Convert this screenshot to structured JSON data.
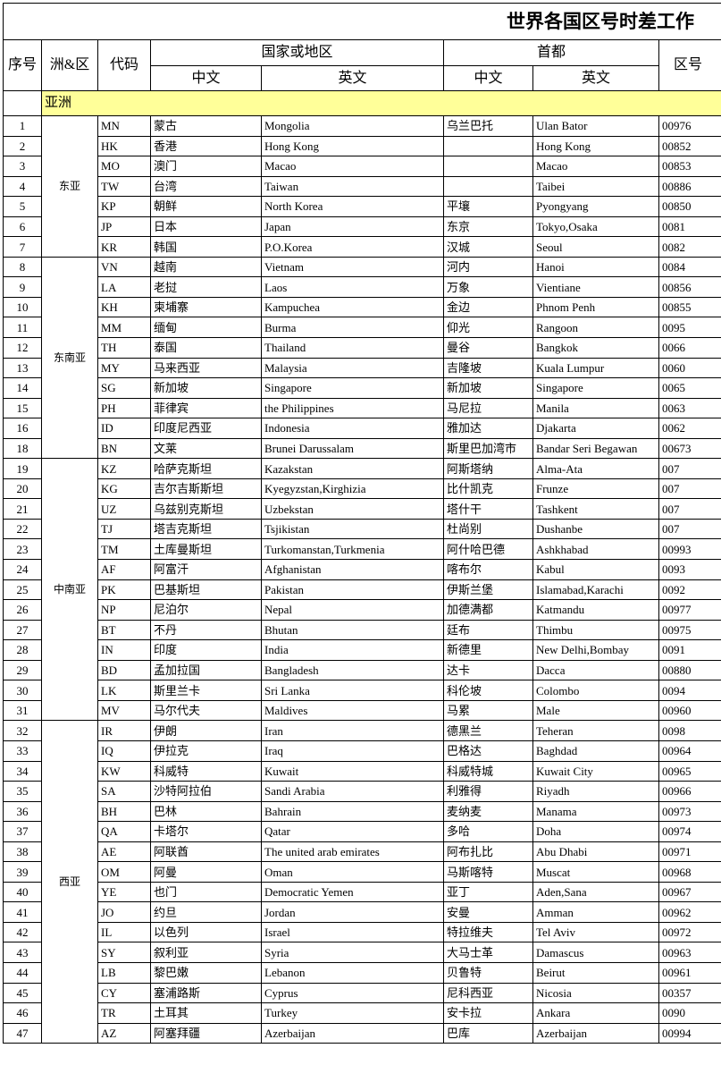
{
  "title": "世界各国区号时差工作",
  "header": {
    "no": "序号",
    "region": "洲&区",
    "code": "代码",
    "country": "国家或地区",
    "capital": "首都",
    "zone": "区号",
    "cn": "中文",
    "en": "英文"
  },
  "table": {
    "continent": "亚洲",
    "groups": [
      {
        "name": "东亚",
        "rows": [
          [
            "1",
            "MN",
            "蒙古",
            "Mongolia",
            "乌兰巴托",
            "Ulan Bator",
            "00976"
          ],
          [
            "2",
            "HK",
            "香港",
            "Hong Kong",
            null,
            "Hong Kong",
            "00852"
          ],
          [
            "3",
            "MO",
            "澳门",
            "Macao",
            null,
            "Macao",
            "00853"
          ],
          [
            "4",
            "TW",
            "台湾",
            "Taiwan",
            null,
            "Taibei",
            "00886"
          ],
          [
            "5",
            "KP",
            "朝鲜",
            "North Korea",
            "平壤",
            "Pyongyang",
            "00850"
          ],
          [
            "6",
            "JP",
            "日本",
            "Japan",
            "东京",
            "Tokyo,Osaka",
            "0081"
          ],
          [
            "7",
            "KR",
            "韩国",
            "P.O.Korea",
            "汉城",
            "Seoul",
            "0082"
          ]
        ]
      },
      {
        "name": "东南亚",
        "rows": [
          [
            "8",
            "VN",
            "越南",
            "Vietnam",
            "河内",
            "Hanoi",
            "0084"
          ],
          [
            "9",
            "LA",
            "老挝",
            "Laos",
            "万象",
            "Vientiane",
            "00856"
          ],
          [
            "10",
            "KH",
            "柬埔寨",
            "Kampuchea",
            "金边",
            "Phnom Penh",
            "00855"
          ],
          [
            "11",
            "MM",
            "缅甸",
            "Burma",
            "仰光",
            "Rangoon",
            "0095"
          ],
          [
            "12",
            "TH",
            "泰国",
            "Thailand",
            "曼谷",
            "Bangkok",
            "0066"
          ],
          [
            "13",
            "MY",
            "马来西亚",
            "Malaysia",
            "吉隆坡",
            "Kuala Lumpur",
            "0060"
          ],
          [
            "14",
            "SG",
            "新加坡",
            "Singapore",
            "新加坡",
            "Singapore",
            "0065"
          ],
          [
            "15",
            "PH",
            "菲律宾",
            "the Philippines",
            "马尼拉",
            "Manila",
            "0063"
          ],
          [
            "16",
            "ID",
            "印度尼西亚",
            "Indonesia",
            "雅加达",
            "Djakarta",
            "0062"
          ],
          [
            "18",
            "BN",
            "文莱",
            "Brunei Darussalam",
            "斯里巴加湾市",
            "Bandar Seri Begawan",
            "00673"
          ]
        ]
      },
      {
        "name": "中南亚",
        "rows": [
          [
            "19",
            "KZ",
            "哈萨克斯坦",
            "Kazakstan",
            "阿斯塔纳",
            "Alma-Ata",
            "007"
          ],
          [
            "20",
            "KG",
            "吉尔吉斯斯坦",
            "Kyegyzstan,Kirghizia",
            "比什凯克",
            "Frunze",
            "007"
          ],
          [
            "21",
            "UZ",
            "乌兹别克斯坦",
            "Uzbekstan",
            "塔什干",
            "Tashkent",
            "007"
          ],
          [
            "22",
            "TJ",
            "塔吉克斯坦",
            "Tsjikistan",
            "杜尚别",
            "Dushanbe",
            "007"
          ],
          [
            "23",
            "TM",
            "土库曼斯坦",
            "Turkomanstan,Turkmenia",
            "阿什哈巴德",
            "Ashkhabad",
            "00993"
          ],
          [
            "24",
            "AF",
            "阿富汗",
            "Afghanistan",
            "喀布尔",
            "Kabul",
            "0093"
          ],
          [
            "25",
            "PK",
            "巴基斯坦",
            "Pakistan",
            "伊斯兰堡",
            "Islamabad,Karachi",
            "0092"
          ],
          [
            "26",
            "NP",
            "尼泊尔",
            "Nepal",
            "加德满都",
            "Katmandu",
            "00977"
          ],
          [
            "27",
            "BT",
            "不丹",
            "Bhutan",
            "廷布",
            "Thimbu",
            "00975"
          ],
          [
            "28",
            "IN",
            "印度",
            "India",
            "新德里",
            "New Delhi,Bombay",
            "0091"
          ],
          [
            "29",
            "BD",
            "孟加拉国",
            "Bangladesh",
            "达卡",
            "Dacca",
            "00880"
          ],
          [
            "30",
            "LK",
            "斯里兰卡",
            "Sri Lanka",
            "科伦坡",
            "Colombo",
            "0094"
          ],
          [
            "31",
            "MV",
            "马尔代夫",
            "Maldives",
            "马累",
            "Male",
            "00960"
          ]
        ]
      },
      {
        "name": "西亚",
        "rows": [
          [
            "32",
            "IR",
            "伊朗",
            "Iran",
            "德黑兰",
            "Teheran",
            "0098"
          ],
          [
            "33",
            "IQ",
            "伊拉克",
            "Iraq",
            "巴格达",
            "Baghdad",
            "00964"
          ],
          [
            "34",
            "KW",
            "科威特",
            "Kuwait",
            "科威特城",
            "Kuwait City",
            "00965"
          ],
          [
            "35",
            "SA",
            "沙特阿拉伯",
            "Sandi Arabia",
            "利雅得",
            "Riyadh",
            "00966"
          ],
          [
            "36",
            "BH",
            "巴林",
            "Bahrain",
            "麦纳麦",
            "Manama",
            "00973"
          ],
          [
            "37",
            "QA",
            "卡塔尔",
            "Qatar",
            "多哈",
            "Doha",
            "00974"
          ],
          [
            "38",
            "AE",
            "阿联酋",
            "The united arab emirates",
            "阿布扎比",
            "Abu Dhabi",
            "00971"
          ],
          [
            "39",
            "OM",
            "阿曼",
            "Oman",
            "马斯喀特",
            "Muscat",
            "00968"
          ],
          [
            "40",
            "YE",
            "也门",
            "Democratic Yemen",
            "亚丁",
            "Aden,Sana",
            "00967"
          ],
          [
            "41",
            "JO",
            "约旦",
            "Jordan",
            "安曼",
            "Amman",
            "00962"
          ],
          [
            "42",
            "IL",
            "以色列",
            "Israel",
            "特拉维夫",
            "Tel Aviv",
            "00972"
          ],
          [
            "43",
            "SY",
            "叙利亚",
            "Syria",
            "大马士革",
            "Damascus",
            "00963"
          ],
          [
            "44",
            "LB",
            "黎巴嫩",
            "Lebanon",
            "贝鲁特",
            "Beirut",
            "00961"
          ],
          [
            "45",
            "CY",
            "塞浦路斯",
            "Cyprus",
            "尼科西亚",
            "Nicosia",
            "00357"
          ],
          [
            "46",
            "TR",
            "土耳其",
            "Turkey",
            "安卡拉",
            "Ankara",
            "0090"
          ],
          [
            "47",
            "AZ",
            "阿塞拜疆",
            "Azerbaijan",
            "巴库",
            "Azerbaijan",
            "00994"
          ]
        ]
      }
    ]
  }
}
